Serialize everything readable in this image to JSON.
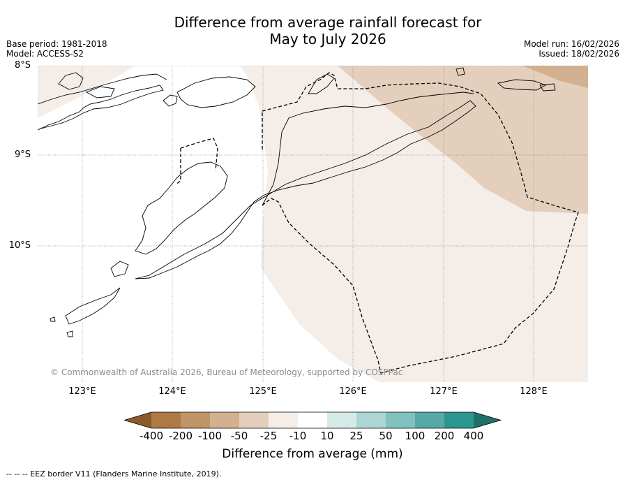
{
  "title": {
    "line1": "Difference from average rainfall forecast for",
    "line2": "May to July 2026"
  },
  "meta": {
    "base_period": "Base period: 1981-2018",
    "model": "Model: ACCESS-S2",
    "model_run": "Model run: 16/02/2026",
    "issued": "Issued: 18/02/2026"
  },
  "axes": {
    "lat_labels": [
      "8°S",
      "9°S",
      "10°S"
    ],
    "lon_labels": [
      "123°E",
      "124°E",
      "125°E",
      "126°E",
      "127°E",
      "128°E"
    ]
  },
  "copyright": "© Commonwealth of Australia 2026, Bureau of Meteorology, supported by COSPPac",
  "colorbar": {
    "label": "Difference from average (mm)",
    "ticks": [
      "-400",
      "-200",
      "-100",
      "-50",
      "-25",
      "-10",
      "10",
      "25",
      "50",
      "100",
      "200",
      "400"
    ],
    "colors": [
      "#8c5a2a",
      "#ad7a45",
      "#c19468",
      "#d3b08f",
      "#e4cfbd",
      "#f4ede8",
      "#ffffff",
      "#d6ebe8",
      "#acd6d3",
      "#82c1bd",
      "#56a9a6",
      "#2b9691",
      "#1f6f6b"
    ]
  },
  "map_colors": {
    "light_brown": "#f4ede8",
    "mid_brown": "#e4cfbd",
    "dark_brown": "#d3b08f"
  },
  "footer": "--  --  -- EEZ border V11 (Flanders Marine Institute, 2019)."
}
